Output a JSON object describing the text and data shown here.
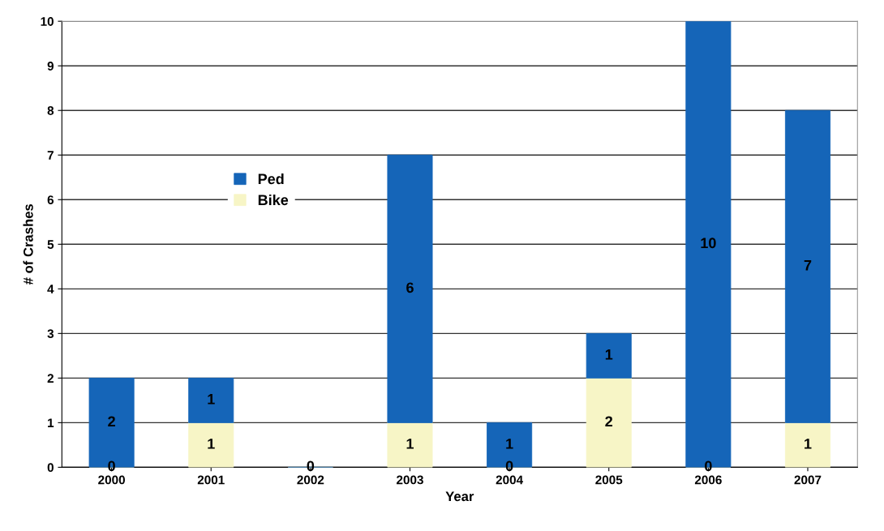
{
  "chart_data": {
    "type": "bar",
    "stacked": true,
    "xlabel": "Year",
    "ylabel": "# of Crashes",
    "categories": [
      "2000",
      "2001",
      "2002",
      "2003",
      "2004",
      "2005",
      "2006",
      "2007"
    ],
    "series": [
      {
        "name": "Bike",
        "color": "#f7f5c6",
        "values": [
          0,
          1,
          0,
          1,
          0,
          2,
          0,
          1
        ],
        "value_labels": [
          "0",
          "1",
          "0",
          "1",
          "0",
          "2",
          "0",
          "1"
        ]
      },
      {
        "name": "Ped",
        "color": "#1565b8",
        "values": [
          2,
          1,
          0,
          6,
          1,
          1,
          10,
          7
        ],
        "value_labels": [
          "2",
          "1",
          null,
          "6",
          "1",
          "1",
          "10",
          "7"
        ]
      }
    ],
    "ylim": [
      0,
      10
    ],
    "yticks": [
      0,
      1,
      2,
      3,
      4,
      5,
      6,
      7,
      8,
      9,
      10
    ],
    "grid": "y",
    "legend": "left"
  }
}
